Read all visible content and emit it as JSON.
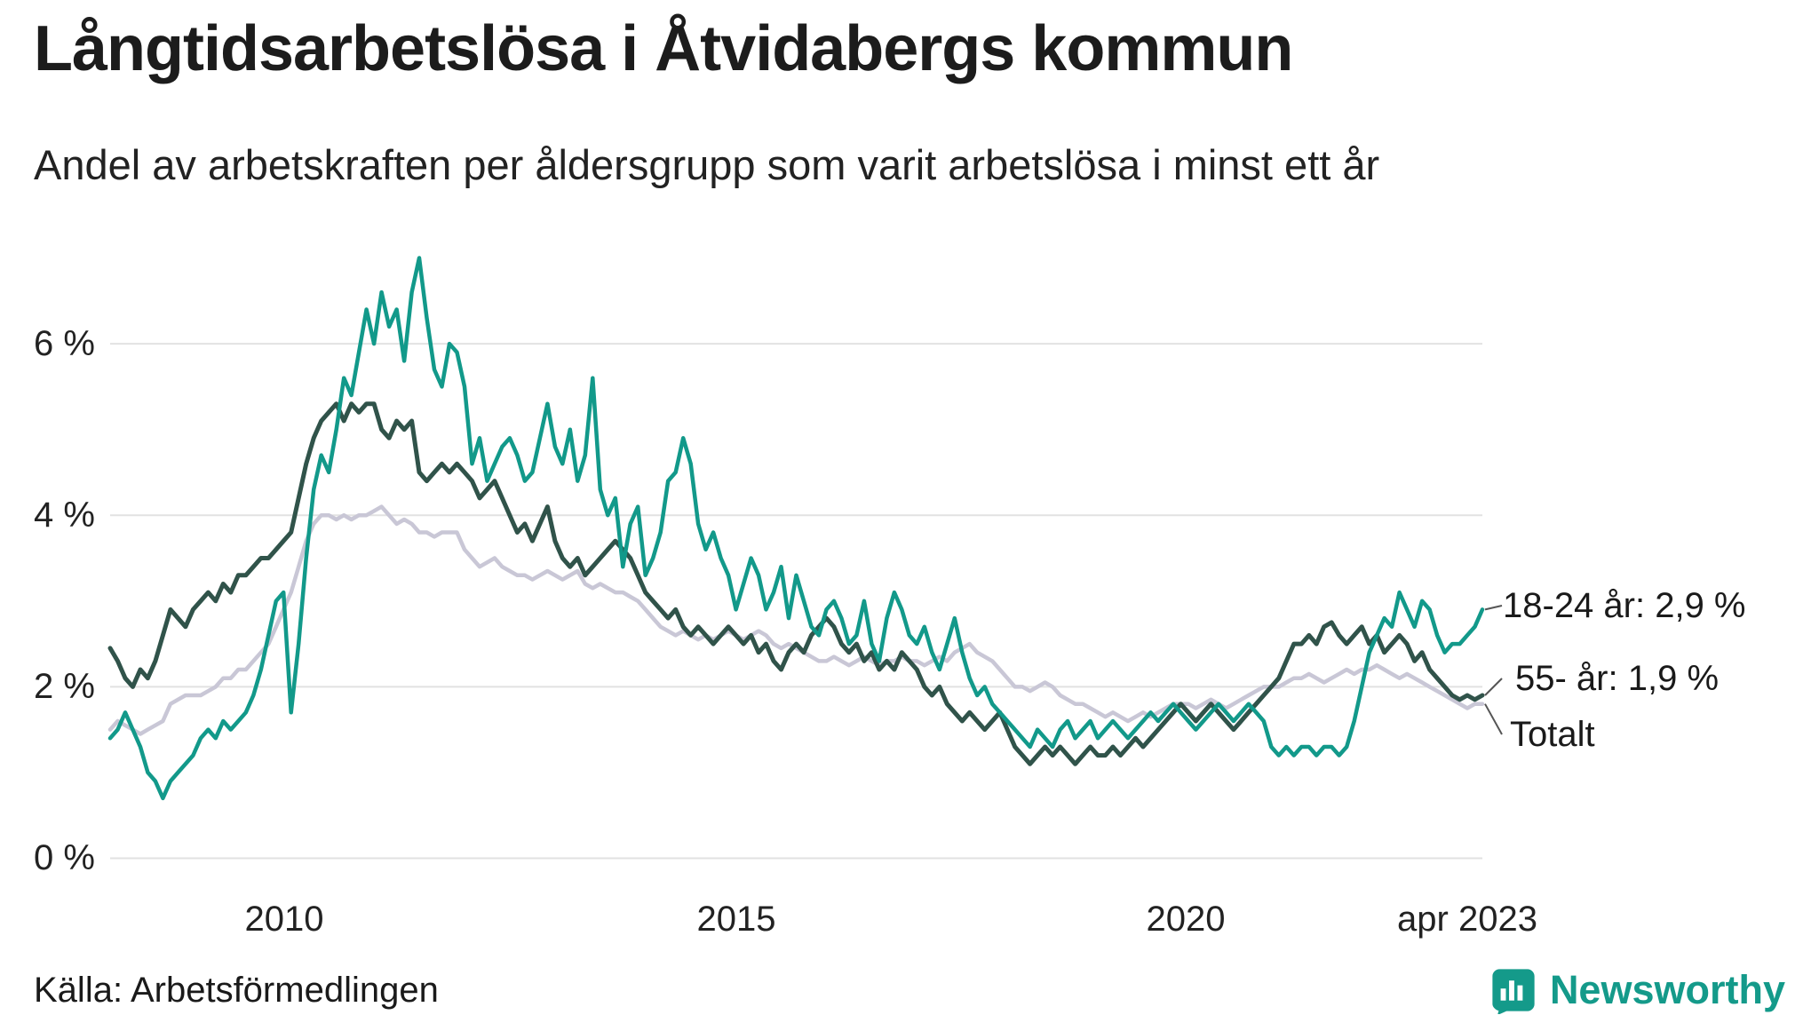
{
  "header": {
    "title": "Långtidsarbetslösa i Åtvidabergs kommun",
    "subtitle": "Andel av arbetskraften per åldersgrupp som varit arbetslösa i minst ett år"
  },
  "chart_data": {
    "type": "line",
    "title": "Långtidsarbetslösa i Åtvidabergs kommun",
    "subtitle": "Andel av arbetskraften per åldersgrupp som varit arbetslösa i minst ett år",
    "x_unit": "month",
    "x_start": "2008-02",
    "x_end": "2023-04",
    "x_tick_labels": [
      "2010",
      "2015",
      "2020",
      "apr 2023"
    ],
    "x_tick_indices": [
      23,
      83,
      143,
      182
    ],
    "y_ticks": [
      0,
      2,
      4,
      6
    ],
    "y_tick_labels": [
      "0 %",
      "2 %",
      "4 %",
      "6 %"
    ],
    "ylim": [
      0,
      7.3
    ],
    "grid": "horizontal",
    "legend_position": "right-end-labels",
    "colors": {
      "youth": "#12998a",
      "senior": "#30534a",
      "total": "#c9c7d6",
      "grid": "#e2e2e2"
    },
    "series": [
      {
        "name": "18-24 år",
        "label": "18-24 år: 2,9 %",
        "last_value": 2.9,
        "color": "#12998a",
        "values": [
          1.4,
          1.5,
          1.7,
          1.5,
          1.3,
          1.0,
          0.9,
          0.7,
          0.9,
          1.0,
          1.1,
          1.2,
          1.4,
          1.5,
          1.4,
          1.6,
          1.5,
          1.6,
          1.7,
          1.9,
          2.2,
          2.6,
          3.0,
          3.1,
          1.7,
          2.5,
          3.5,
          4.3,
          4.7,
          4.5,
          5.0,
          5.6,
          5.4,
          5.9,
          6.4,
          6.0,
          6.6,
          6.2,
          6.4,
          5.8,
          6.6,
          7.0,
          6.3,
          5.7,
          5.5,
          6.0,
          5.9,
          5.5,
          4.6,
          4.9,
          4.4,
          4.6,
          4.8,
          4.9,
          4.7,
          4.4,
          4.5,
          4.9,
          5.3,
          4.8,
          4.6,
          5.0,
          4.4,
          4.7,
          5.6,
          4.3,
          4.0,
          4.2,
          3.4,
          3.9,
          4.1,
          3.3,
          3.5,
          3.8,
          4.4,
          4.5,
          4.9,
          4.6,
          3.9,
          3.6,
          3.8,
          3.5,
          3.3,
          2.9,
          3.2,
          3.5,
          3.3,
          2.9,
          3.1,
          3.4,
          2.8,
          3.3,
          3.0,
          2.7,
          2.6,
          2.9,
          3.0,
          2.8,
          2.5,
          2.6,
          3.0,
          2.5,
          2.3,
          2.8,
          3.1,
          2.9,
          2.6,
          2.5,
          2.7,
          2.4,
          2.2,
          2.5,
          2.8,
          2.4,
          2.1,
          1.9,
          2.0,
          1.8,
          1.7,
          1.6,
          1.5,
          1.4,
          1.3,
          1.5,
          1.4,
          1.3,
          1.5,
          1.6,
          1.4,
          1.5,
          1.6,
          1.4,
          1.5,
          1.6,
          1.5,
          1.4,
          1.5,
          1.6,
          1.7,
          1.6,
          1.7,
          1.8,
          1.7,
          1.6,
          1.5,
          1.6,
          1.7,
          1.8,
          1.7,
          1.6,
          1.7,
          1.8,
          1.7,
          1.6,
          1.3,
          1.2,
          1.3,
          1.2,
          1.3,
          1.3,
          1.2,
          1.3,
          1.3,
          1.2,
          1.3,
          1.6,
          2.0,
          2.4,
          2.6,
          2.8,
          2.7,
          3.1,
          2.9,
          2.7,
          3.0,
          2.9,
          2.6,
          2.4,
          2.5,
          2.5,
          2.6,
          2.7,
          2.9
        ]
      },
      {
        "name": "55- år",
        "label": "55- år: 1,9 %",
        "last_value": 1.9,
        "color": "#30534a",
        "values": [
          2.45,
          2.3,
          2.1,
          2.0,
          2.2,
          2.1,
          2.3,
          2.6,
          2.9,
          2.8,
          2.7,
          2.9,
          3.0,
          3.1,
          3.0,
          3.2,
          3.1,
          3.3,
          3.3,
          3.4,
          3.5,
          3.5,
          3.6,
          3.7,
          3.8,
          4.2,
          4.6,
          4.9,
          5.1,
          5.2,
          5.3,
          5.1,
          5.3,
          5.2,
          5.3,
          5.3,
          5.0,
          4.9,
          5.1,
          5.0,
          5.1,
          4.5,
          4.4,
          4.5,
          4.6,
          4.5,
          4.6,
          4.5,
          4.4,
          4.2,
          4.3,
          4.4,
          4.2,
          4.0,
          3.8,
          3.9,
          3.7,
          3.9,
          4.1,
          3.7,
          3.5,
          3.4,
          3.5,
          3.3,
          3.4,
          3.5,
          3.6,
          3.7,
          3.6,
          3.5,
          3.3,
          3.1,
          3.0,
          2.9,
          2.8,
          2.9,
          2.7,
          2.6,
          2.7,
          2.6,
          2.5,
          2.6,
          2.7,
          2.6,
          2.5,
          2.6,
          2.4,
          2.5,
          2.3,
          2.2,
          2.4,
          2.5,
          2.4,
          2.6,
          2.7,
          2.8,
          2.7,
          2.5,
          2.4,
          2.5,
          2.3,
          2.4,
          2.2,
          2.3,
          2.2,
          2.4,
          2.3,
          2.2,
          2.0,
          1.9,
          2.0,
          1.8,
          1.7,
          1.6,
          1.7,
          1.6,
          1.5,
          1.6,
          1.7,
          1.5,
          1.3,
          1.2,
          1.1,
          1.2,
          1.3,
          1.2,
          1.3,
          1.2,
          1.1,
          1.2,
          1.3,
          1.2,
          1.2,
          1.3,
          1.2,
          1.3,
          1.4,
          1.3,
          1.4,
          1.5,
          1.6,
          1.7,
          1.8,
          1.7,
          1.6,
          1.7,
          1.8,
          1.7,
          1.6,
          1.5,
          1.6,
          1.7,
          1.8,
          1.9,
          2.0,
          2.1,
          2.3,
          2.5,
          2.5,
          2.6,
          2.5,
          2.7,
          2.75,
          2.6,
          2.5,
          2.6,
          2.7,
          2.5,
          2.6,
          2.4,
          2.5,
          2.6,
          2.5,
          2.3,
          2.4,
          2.2,
          2.1,
          2.0,
          1.9,
          1.85,
          1.9,
          1.85,
          1.9
        ]
      },
      {
        "name": "Totalt",
        "label": "Totalt",
        "last_value": 1.8,
        "color": "#c9c7d6",
        "values": [
          1.5,
          1.6,
          1.55,
          1.5,
          1.45,
          1.5,
          1.55,
          1.6,
          1.8,
          1.85,
          1.9,
          1.9,
          1.9,
          1.95,
          2.0,
          2.1,
          2.1,
          2.2,
          2.2,
          2.3,
          2.4,
          2.5,
          2.7,
          2.9,
          3.1,
          3.4,
          3.7,
          3.9,
          4.0,
          4.0,
          3.95,
          4.0,
          3.95,
          4.0,
          4.0,
          4.05,
          4.1,
          4.0,
          3.9,
          3.95,
          3.9,
          3.8,
          3.8,
          3.75,
          3.8,
          3.8,
          3.8,
          3.6,
          3.5,
          3.4,
          3.45,
          3.5,
          3.4,
          3.35,
          3.3,
          3.3,
          3.25,
          3.3,
          3.35,
          3.3,
          3.25,
          3.3,
          3.35,
          3.2,
          3.15,
          3.2,
          3.15,
          3.1,
          3.1,
          3.05,
          3.0,
          2.9,
          2.8,
          2.7,
          2.65,
          2.6,
          2.65,
          2.6,
          2.55,
          2.6,
          2.55,
          2.6,
          2.65,
          2.6,
          2.55,
          2.6,
          2.65,
          2.6,
          2.5,
          2.45,
          2.5,
          2.45,
          2.4,
          2.35,
          2.3,
          2.3,
          2.35,
          2.3,
          2.25,
          2.3,
          2.35,
          2.3,
          2.25,
          2.3,
          2.3,
          2.35,
          2.3,
          2.3,
          2.25,
          2.3,
          2.35,
          2.3,
          2.4,
          2.45,
          2.5,
          2.4,
          2.35,
          2.3,
          2.2,
          2.1,
          2.0,
          2.0,
          1.95,
          2.0,
          2.05,
          2.0,
          1.9,
          1.85,
          1.8,
          1.8,
          1.75,
          1.7,
          1.65,
          1.7,
          1.65,
          1.6,
          1.65,
          1.7,
          1.65,
          1.7,
          1.75,
          1.8,
          1.8,
          1.8,
          1.75,
          1.8,
          1.85,
          1.8,
          1.75,
          1.8,
          1.85,
          1.9,
          1.95,
          2.0,
          2.0,
          2.0,
          2.05,
          2.1,
          2.1,
          2.15,
          2.1,
          2.05,
          2.1,
          2.15,
          2.2,
          2.15,
          2.2,
          2.2,
          2.25,
          2.2,
          2.15,
          2.1,
          2.15,
          2.1,
          2.05,
          2.0,
          1.95,
          1.9,
          1.85,
          1.8,
          1.75,
          1.8,
          1.8
        ]
      }
    ]
  },
  "footer": {
    "source": "Källa: Arbetsförmedlingen",
    "brand": "Newsworthy"
  }
}
